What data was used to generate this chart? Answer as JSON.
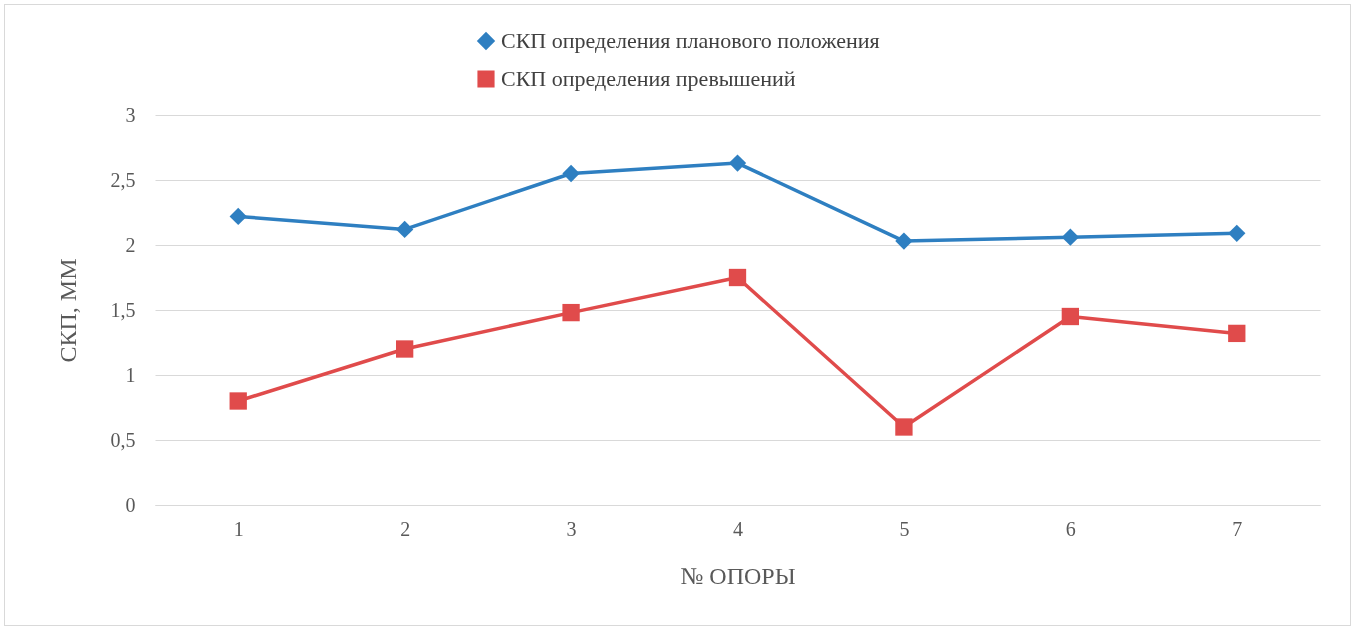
{
  "chart_data": {
    "type": "line",
    "xlabel": "№ ОПОРЫ",
    "ylabel": "СКП, ММ",
    "categories": [
      "1",
      "2",
      "3",
      "4",
      "5",
      "6",
      "7"
    ],
    "series": [
      {
        "name": "СКП определения планового положения",
        "color": "#2e7fc1",
        "marker": "diamond",
        "values": [
          2.22,
          2.12,
          2.55,
          2.63,
          2.03,
          2.06,
          2.09
        ]
      },
      {
        "name": "СКП определения превышений",
        "color": "#e04b4b",
        "marker": "square",
        "values": [
          0.8,
          1.2,
          1.48,
          1.75,
          0.6,
          1.45,
          1.32
        ]
      }
    ],
    "ylim": [
      0,
      3
    ],
    "yticks": [
      0,
      {
        "value": 0.5,
        "label": "0,5"
      },
      1,
      {
        "value": 1.5,
        "label": "1,5"
      },
      2,
      {
        "value": 2.5,
        "label": "2,5"
      },
      3
    ],
    "grid": "y",
    "legend": "top",
    "line_style": "solid"
  }
}
